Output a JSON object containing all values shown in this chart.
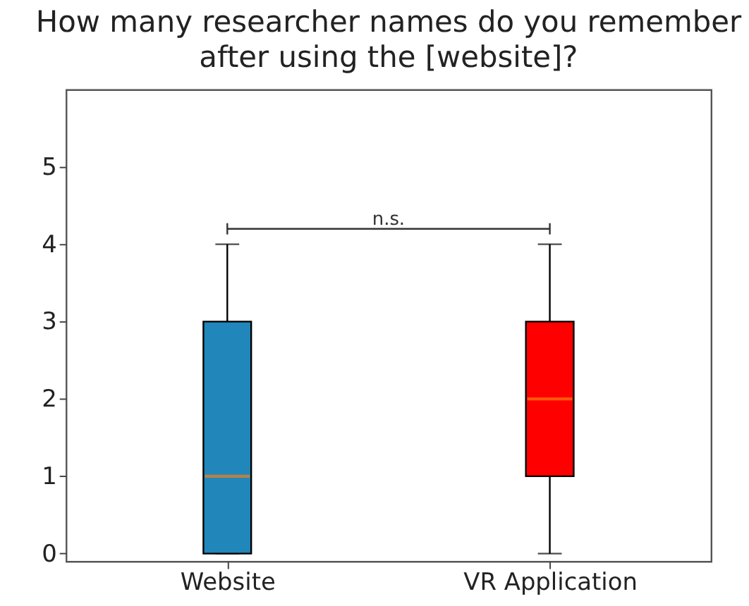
{
  "chart_data": {
    "type": "box",
    "title": "How many researcher names do you remember\nafter using the [website]?",
    "categories": [
      "Website",
      "VR Application"
    ],
    "colors": [
      "#2187bb",
      "#ff0000"
    ],
    "boxes": [
      {
        "low": 0,
        "q1": 0,
        "median": 1,
        "q3": 3,
        "high": 4
      },
      {
        "low": 0,
        "q1": 1,
        "median": 2,
        "q3": 3,
        "high": 4
      }
    ],
    "ylim": [
      -0.1,
      6.0
    ],
    "yticks": [
      0,
      1,
      2,
      3,
      4,
      5
    ],
    "annotations": [
      "n.s."
    ]
  }
}
